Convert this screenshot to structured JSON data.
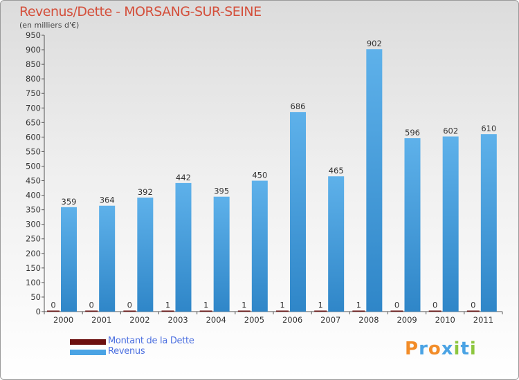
{
  "header": {
    "title": "Revenus/Dette - MORSANG-SUR-SEINE",
    "subtitle": "(en milliers d'€)"
  },
  "chart_data": {
    "type": "bar",
    "title": "Revenus/Dette - MORSANG-SUR-SEINE",
    "subtitle": "(en milliers d'€)",
    "xlabel": "",
    "ylabel": "",
    "ylim": [
      0,
      950
    ],
    "yticks": [
      0,
      50,
      100,
      150,
      200,
      250,
      300,
      350,
      400,
      450,
      500,
      550,
      600,
      650,
      700,
      750,
      800,
      850,
      900,
      950
    ],
    "grid": false,
    "legend_position": "bottom-left",
    "categories": [
      "2000",
      "2001",
      "2002",
      "2003",
      "2004",
      "2005",
      "2006",
      "2007",
      "2008",
      "2009",
      "2010",
      "2011"
    ],
    "series": [
      {
        "name": "Montant de la Dette",
        "color": "#6b0f0f",
        "values": [
          0,
          0,
          0,
          1,
          1,
          1,
          1,
          1,
          1,
          0,
          0,
          0
        ]
      },
      {
        "name": "Revenus",
        "color": "#4aa3e4",
        "values": [
          359,
          364,
          392,
          442,
          395,
          450,
          686,
          465,
          902,
          596,
          602,
          610
        ]
      }
    ]
  },
  "legend": {
    "items": [
      {
        "label": "Montant de la Dette",
        "color": "#6b0f0f"
      },
      {
        "label": "Revenus",
        "color": "#4aa3e4"
      }
    ]
  },
  "branding": {
    "letters": [
      "P",
      "r",
      "o",
      "x",
      "i",
      "t",
      "i"
    ],
    "colors": [
      "#f28c28",
      "#4aa3e4",
      "#f28c28",
      "#4aa3e4",
      "#8dc63f",
      "#4aa3e4",
      "#8dc63f"
    ]
  }
}
